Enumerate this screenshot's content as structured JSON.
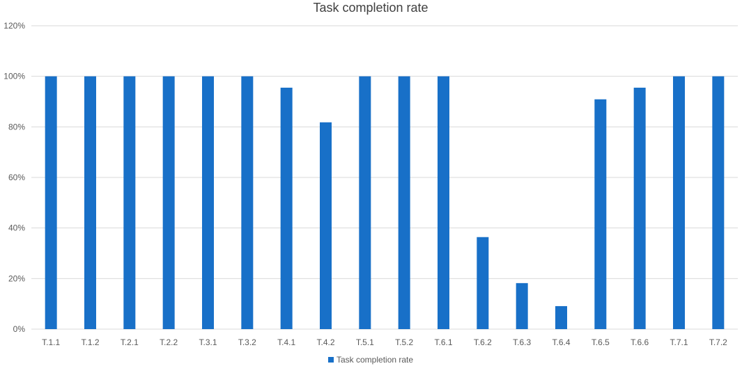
{
  "chart_data": {
    "type": "bar",
    "title": "Task completion rate",
    "xlabel": "",
    "ylabel": "",
    "categories": [
      "T.1.1",
      "T.1.2",
      "T.2.1",
      "T.2.2",
      "T.3.1",
      "T.3.2",
      "T.4.1",
      "T.4.2",
      "T.5.1",
      "T.5.2",
      "T.6.1",
      "T.6.2",
      "T.6.3",
      "T.6.4",
      "T.6.5",
      "T.6.6",
      "T.7.1",
      "T.7.2"
    ],
    "series": [
      {
        "name": "Task completion rate",
        "values": [
          100,
          100,
          100,
          100,
          100,
          100,
          95.5,
          81.8,
          100,
          100,
          100,
          36.4,
          18.2,
          9.1,
          90.9,
          95.5,
          100,
          100
        ],
        "color": "#1870c8"
      }
    ],
    "ylim": [
      0,
      120
    ],
    "yticks": [
      0,
      20,
      40,
      60,
      80,
      100,
      120
    ],
    "ytick_labels": [
      "0%",
      "20%",
      "40%",
      "60%",
      "80%",
      "100%",
      "120%"
    ],
    "grid": true,
    "legend_position": "bottom"
  }
}
